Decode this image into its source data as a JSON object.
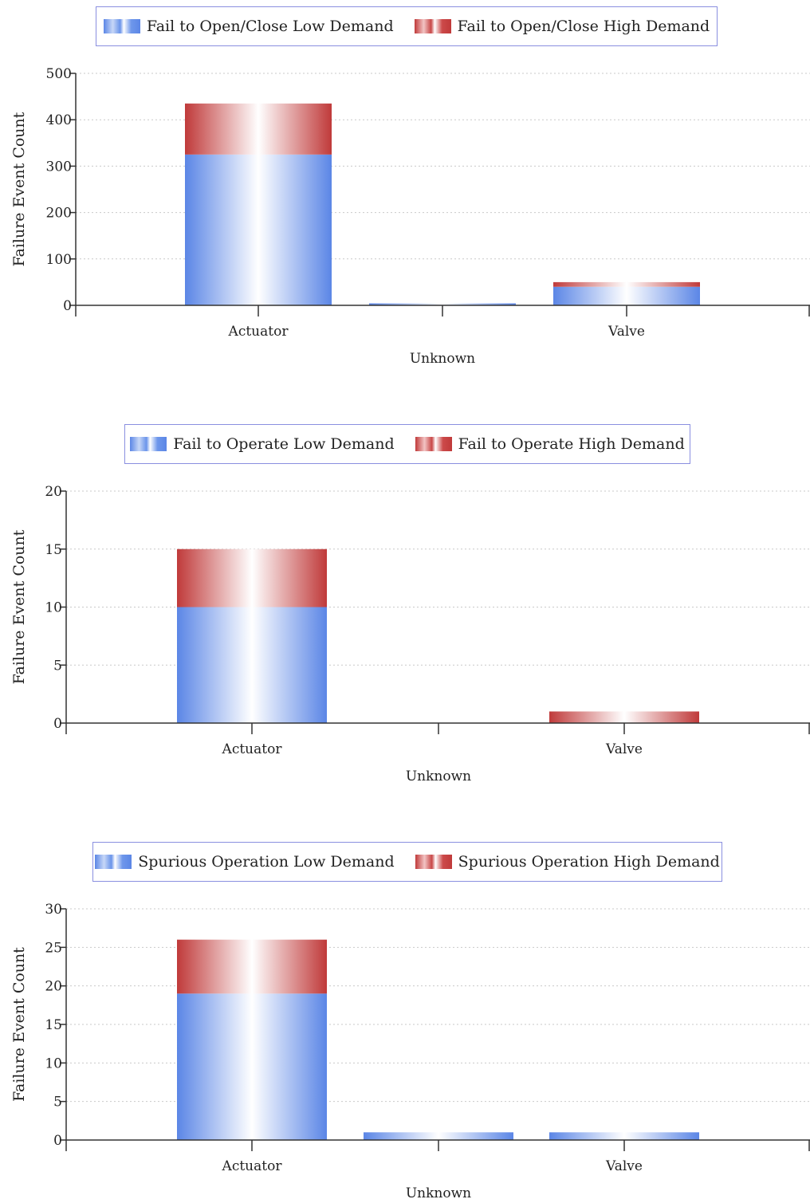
{
  "colors": {
    "low": "#5b86e6",
    "high": "#c03a3a",
    "legend_border": "#8a8fe0",
    "grid": "#c9c9c9"
  },
  "chart_data": [
    {
      "type": "bar",
      "stacked": true,
      "categories": [
        "Actuator",
        "Unknown",
        "Valve"
      ],
      "series": [
        {
          "name": "Fail to Open/Close Low Demand",
          "values": [
            325,
            2,
            40
          ]
        },
        {
          "name": "Fail to Open/Close High Demand",
          "values": [
            110,
            0,
            10
          ]
        }
      ],
      "ylabel": "Failure Event Count",
      "ylim": [
        0,
        500
      ],
      "yticks": [
        0,
        100,
        200,
        300,
        400,
        500
      ],
      "grid": true,
      "legend_position": "top"
    },
    {
      "type": "bar",
      "stacked": true,
      "categories": [
        "Actuator",
        "Unknown",
        "Valve"
      ],
      "series": [
        {
          "name": "Fail to Operate Low Demand",
          "values": [
            10,
            0,
            0
          ]
        },
        {
          "name": "Fail to Operate High Demand",
          "values": [
            5,
            0,
            1
          ]
        }
      ],
      "ylabel": "Failure Event Count",
      "ylim": [
        0,
        20
      ],
      "yticks": [
        0,
        5,
        10,
        15,
        20
      ],
      "grid": true,
      "legend_position": "top"
    },
    {
      "type": "bar",
      "stacked": true,
      "categories": [
        "Actuator",
        "Unknown",
        "Valve"
      ],
      "series": [
        {
          "name": "Spurious Operation Low Demand",
          "values": [
            19,
            1,
            1
          ]
        },
        {
          "name": "Spurious Operation High Demand",
          "values": [
            7,
            0,
            0
          ]
        }
      ],
      "ylabel": "Failure Event Count",
      "ylim": [
        0,
        30
      ],
      "yticks": [
        0,
        5,
        10,
        15,
        20,
        25,
        30
      ],
      "grid": true,
      "legend_position": "top"
    }
  ]
}
